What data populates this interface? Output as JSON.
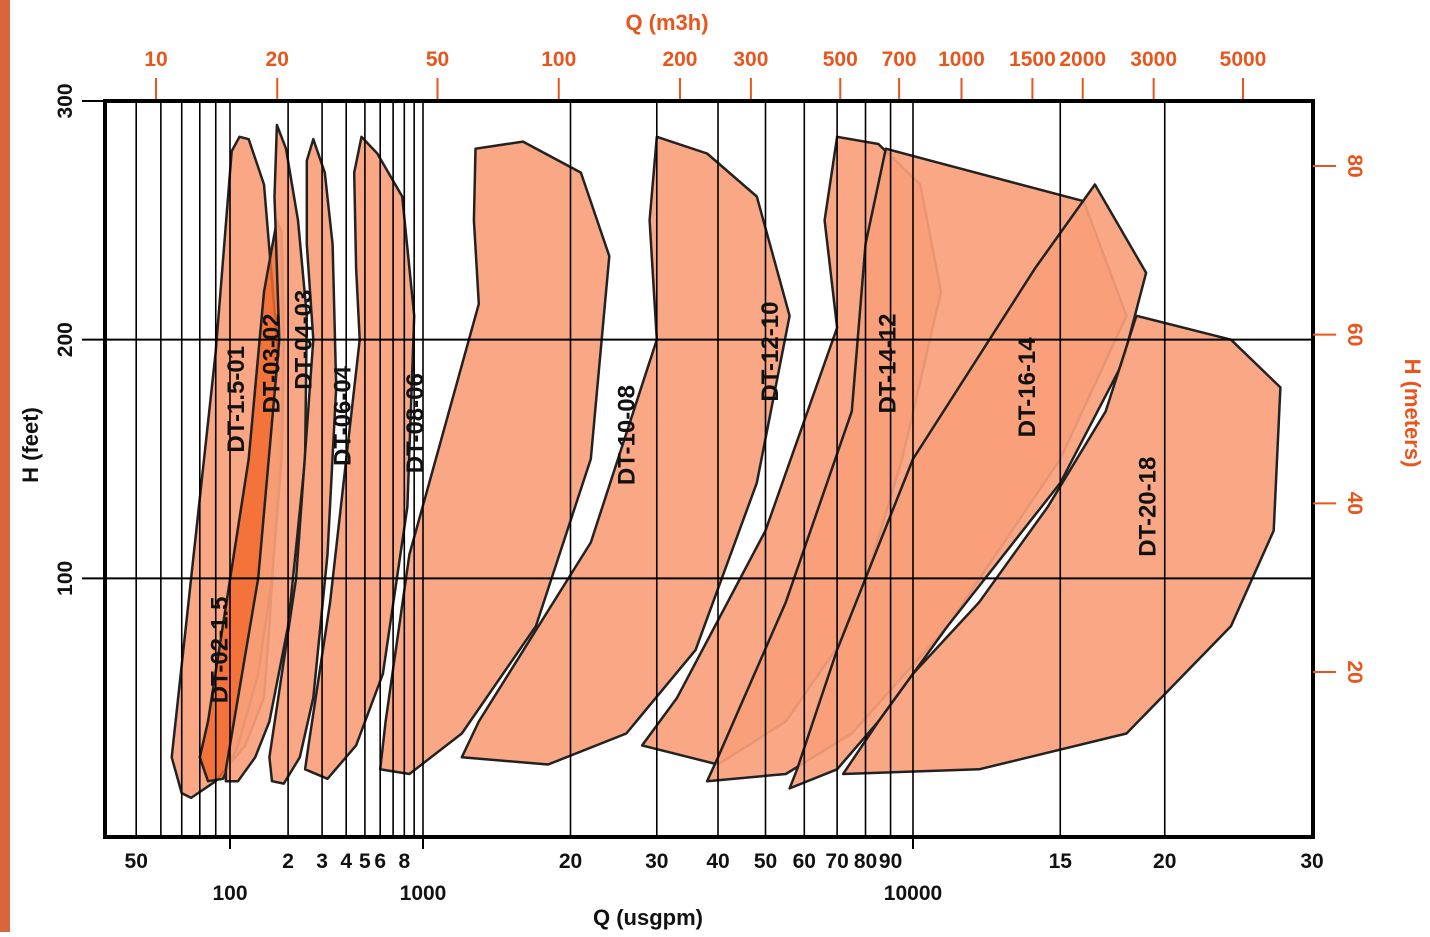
{
  "colors": {
    "left_bar": "#d9663a",
    "accent": "#e8561e",
    "region_light": "#f9a07a",
    "region_dark": "#f26a2e",
    "outline": "#222222",
    "grid": "#000000"
  },
  "chart_data": {
    "type": "area",
    "title": "",
    "x_axis_bottom": {
      "label": "Q (usgpm)",
      "scale": "log",
      "range": [
        40,
        30000
      ],
      "decade_labels": [
        {
          "value": 100,
          "text": "100"
        },
        {
          "value": 1000,
          "text": "1000"
        },
        {
          "value": 10000,
          "text": "10000"
        }
      ],
      "minor_labels": [
        {
          "value": 50,
          "text": "50"
        },
        {
          "value": 200,
          "text": "2"
        },
        {
          "value": 300,
          "text": "3"
        },
        {
          "value": 400,
          "text": "4"
        },
        {
          "value": 500,
          "text": "5"
        },
        {
          "value": 600,
          "text": "6"
        },
        {
          "value": 800,
          "text": "8"
        },
        {
          "value": 2000,
          "text": "20"
        },
        {
          "value": 3000,
          "text": "30"
        },
        {
          "value": 4000,
          "text": "40"
        },
        {
          "value": 5000,
          "text": "50"
        },
        {
          "value": 6000,
          "text": "60"
        },
        {
          "value": 7000,
          "text": "70"
        },
        {
          "value": 8000,
          "text": "80"
        },
        {
          "value": 9000,
          "text": "90"
        },
        {
          "value": 15000,
          "text": "15"
        },
        {
          "value": 20000,
          "text": "20"
        },
        {
          "value": 30000,
          "text": "30"
        }
      ],
      "grid_values": [
        50,
        60,
        70,
        80,
        90,
        100,
        200,
        300,
        400,
        500,
        600,
        700,
        800,
        900,
        1000,
        2000,
        3000,
        4000,
        5000,
        6000,
        7000,
        8000,
        9000,
        10000,
        15000,
        20000
      ]
    },
    "x_axis_top": {
      "label": "Q (m3h)",
      "ticks": [
        {
          "value": 10,
          "text": "10"
        },
        {
          "value": 20,
          "text": "20"
        },
        {
          "value": 50,
          "text": "50"
        },
        {
          "value": 100,
          "text": "100"
        },
        {
          "value": 200,
          "text": "200"
        },
        {
          "value": 300,
          "text": "300"
        },
        {
          "value": 500,
          "text": "500"
        },
        {
          "value": 700,
          "text": "700"
        },
        {
          "value": 1000,
          "text": "1000"
        },
        {
          "value": 1500,
          "text": "1500"
        },
        {
          "value": 2000,
          "text": "2000"
        },
        {
          "value": 3000,
          "text": "3000"
        },
        {
          "value": 5000,
          "text": "5000"
        }
      ]
    },
    "y_axis_left": {
      "label": "H (feet)",
      "range": [
        0,
        300
      ],
      "ticks": [
        {
          "value": 100,
          "text": "100"
        },
        {
          "value": 200,
          "text": "200"
        },
        {
          "value": 300,
          "text": "300"
        }
      ],
      "grid_values": [
        100,
        200
      ]
    },
    "y_axis_right": {
      "label": "H (meters)",
      "ticks": [
        {
          "value": 20,
          "text": "20"
        },
        {
          "value": 40,
          "text": "40"
        },
        {
          "value": 60,
          "text": "60"
        },
        {
          "value": 80,
          "text": "80"
        }
      ]
    },
    "series": [
      {
        "name": "DT-1.5-01",
        "tone": "light",
        "label_at": [
          118,
          175
        ],
        "outline": [
          [
            70,
            10
          ],
          [
            65,
            25
          ],
          [
            90,
            195
          ],
          [
            102,
            279
          ],
          [
            112,
            285
          ],
          [
            125,
            284
          ],
          [
            150,
            265
          ],
          [
            175,
            200
          ],
          [
            180,
            150
          ],
          [
            160,
            80
          ],
          [
            150,
            50
          ],
          [
            120,
            30
          ],
          [
            90,
            15
          ],
          [
            75,
            8
          ],
          [
            70,
            10
          ]
        ]
      },
      {
        "name": "DT-02-1.5",
        "tone": "dark",
        "label_at": [
          98,
          70
        ],
        "outline": [
          [
            80,
            25
          ],
          [
            85,
            40
          ],
          [
            125,
            150
          ],
          [
            150,
            220
          ],
          [
            175,
            250
          ],
          [
            185,
            245
          ],
          [
            190,
            200
          ],
          [
            185,
            150
          ],
          [
            165,
            100
          ],
          [
            140,
            60
          ],
          [
            110,
            30
          ],
          [
            95,
            16
          ],
          [
            85,
            15
          ],
          [
            80,
            25
          ]
        ]
      },
      {
        "name": "DT-03-02",
        "tone": "light",
        "label_at": [
          180,
          190
        ],
        "outline": [
          [
            97,
            15
          ],
          [
            97,
            20
          ],
          [
            140,
            100
          ],
          [
            180,
            200
          ],
          [
            170,
            260
          ],
          [
            175,
            290
          ],
          [
            195,
            280
          ],
          [
            225,
            250
          ],
          [
            250,
            210
          ],
          [
            245,
            150
          ],
          [
            200,
            80
          ],
          [
            160,
            40
          ],
          [
            135,
            25
          ],
          [
            110,
            15
          ],
          [
            97,
            15
          ]
        ]
      },
      {
        "name": "DT-04-03",
        "tone": "light",
        "label_at": [
          265,
          200
        ],
        "outline": [
          [
            165,
            15
          ],
          [
            160,
            25
          ],
          [
            220,
            100
          ],
          [
            270,
            200
          ],
          [
            250,
            240
          ],
          [
            250,
            275
          ],
          [
            270,
            284
          ],
          [
            310,
            270
          ],
          [
            340,
            240
          ],
          [
            355,
            180
          ],
          [
            320,
            110
          ],
          [
            270,
            50
          ],
          [
            230,
            25
          ],
          [
            190,
            14
          ],
          [
            165,
            15
          ]
        ]
      },
      {
        "name": "DT-06-04",
        "tone": "light",
        "label_at": [
          420,
          168
        ],
        "outline": [
          [
            245,
            20
          ],
          [
            255,
            30
          ],
          [
            330,
            90
          ],
          [
            470,
            200
          ],
          [
            450,
            230
          ],
          [
            440,
            270
          ],
          [
            480,
            285
          ],
          [
            580,
            278
          ],
          [
            780,
            260
          ],
          [
            900,
            210
          ],
          [
            830,
            130
          ],
          [
            620,
            60
          ],
          [
            450,
            30
          ],
          [
            320,
            16
          ],
          [
            245,
            20
          ]
        ]
      },
      {
        "name": "DT-08-06",
        "tone": "light",
        "label_at": [
          1000,
          165
        ],
        "outline": [
          [
            600,
            20
          ],
          [
            640,
            40
          ],
          [
            850,
            110
          ],
          [
            1300,
            215
          ],
          [
            1270,
            250
          ],
          [
            1280,
            280
          ],
          [
            1600,
            283
          ],
          [
            2100,
            270
          ],
          [
            2400,
            235
          ],
          [
            2200,
            150
          ],
          [
            1700,
            80
          ],
          [
            1200,
            35
          ],
          [
            850,
            18
          ],
          [
            600,
            20
          ]
        ]
      },
      {
        "name": "DT-10-08",
        "tone": "light",
        "label_at": [
          2700,
          160
        ],
        "outline": [
          [
            1200,
            25
          ],
          [
            1300,
            40
          ],
          [
            2200,
            115
          ],
          [
            3000,
            200
          ],
          [
            2900,
            250
          ],
          [
            3000,
            285
          ],
          [
            3800,
            278
          ],
          [
            4800,
            260
          ],
          [
            5600,
            210
          ],
          [
            4800,
            140
          ],
          [
            3600,
            70
          ],
          [
            2600,
            35
          ],
          [
            1800,
            22
          ],
          [
            1200,
            25
          ]
        ]
      },
      {
        "name": "DT-12-10",
        "tone": "light",
        "label_at": [
          5300,
          195
        ],
        "outline": [
          [
            2800,
            30
          ],
          [
            3300,
            50
          ],
          [
            5000,
            120
          ],
          [
            7000,
            205
          ],
          [
            6600,
            250
          ],
          [
            7000,
            285
          ],
          [
            8500,
            282
          ],
          [
            10200,
            265
          ],
          [
            10800,
            220
          ],
          [
            9500,
            150
          ],
          [
            7500,
            80
          ],
          [
            5500,
            40
          ],
          [
            4000,
            22
          ],
          [
            2800,
            30
          ]
        ]
      },
      {
        "name": "DT-14-12",
        "tone": "light",
        "label_at": [
          9200,
          190
        ],
        "outline": [
          [
            3800,
            15
          ],
          [
            4000,
            25
          ],
          [
            5500,
            90
          ],
          [
            7500,
            170
          ],
          [
            8000,
            240
          ],
          [
            8800,
            280
          ],
          [
            10500,
            275
          ],
          [
            16000,
            258
          ],
          [
            18000,
            210
          ],
          [
            15000,
            150
          ],
          [
            11000,
            80
          ],
          [
            7500,
            35
          ],
          [
            5500,
            18
          ],
          [
            3800,
            15
          ]
        ]
      },
      {
        "name": "DT-16-14",
        "tone": "light",
        "label_at": [
          14000,
          180
        ],
        "outline": [
          [
            5600,
            12
          ],
          [
            5800,
            20
          ],
          [
            7000,
            70
          ],
          [
            10000,
            150
          ],
          [
            14000,
            230
          ],
          [
            16500,
            265
          ],
          [
            19000,
            228
          ],
          [
            17800,
            190
          ],
          [
            15000,
            140
          ],
          [
            11000,
            80
          ],
          [
            8500,
            40
          ],
          [
            7000,
            20
          ],
          [
            5600,
            12
          ]
        ]
      },
      {
        "name": "DT-20-18",
        "tone": "light",
        "label_at": [
          19500,
          130
        ],
        "outline": [
          [
            7200,
            18
          ],
          [
            8500,
            40
          ],
          [
            10000,
            60
          ],
          [
            12000,
            90
          ],
          [
            14500,
            130
          ],
          [
            17000,
            170
          ],
          [
            18500,
            210
          ],
          [
            24000,
            200
          ],
          [
            27500,
            180
          ],
          [
            27000,
            120
          ],
          [
            24000,
            80
          ],
          [
            18000,
            35
          ],
          [
            12000,
            20
          ],
          [
            7200,
            18
          ]
        ]
      }
    ]
  }
}
